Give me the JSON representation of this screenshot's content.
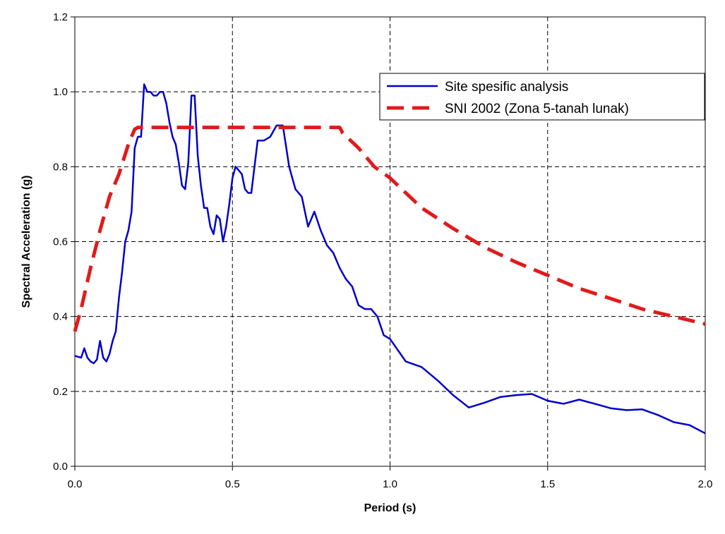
{
  "chart_data": {
    "type": "line",
    "title": "",
    "xlabel": "Period (s)",
    "ylabel": "Spectral Acceleration (g)",
    "xlim": [
      0,
      2.0
    ],
    "ylim": [
      0,
      1.2
    ],
    "x_ticks": [
      {
        "value": 0.0,
        "label": "0.0"
      },
      {
        "value": 0.5,
        "label": "0.5"
      },
      {
        "value": 1.0,
        "label": "1.0"
      },
      {
        "value": 1.5,
        "label": "1.5"
      },
      {
        "value": 2.0,
        "label": "2.0"
      }
    ],
    "y_ticks": [
      {
        "value": 0.0,
        "label": "0.0"
      },
      {
        "value": 0.2,
        "label": "0.2"
      },
      {
        "value": 0.4,
        "label": "0.4"
      },
      {
        "value": 0.6,
        "label": "0.6"
      },
      {
        "value": 0.8,
        "label": "0.8"
      },
      {
        "value": 1.0,
        "label": "1.0"
      },
      {
        "value": 1.2,
        "label": "1.2"
      }
    ],
    "grid": "dashed",
    "legend_position": "top-right",
    "series": [
      {
        "name": "Site spesific analysis",
        "color": "#0000cc",
        "style": "solid",
        "x": [
          0.0,
          0.02,
          0.03,
          0.04,
          0.05,
          0.06,
          0.07,
          0.08,
          0.09,
          0.1,
          0.11,
          0.12,
          0.13,
          0.14,
          0.15,
          0.16,
          0.17,
          0.18,
          0.19,
          0.2,
          0.21,
          0.22,
          0.23,
          0.24,
          0.25,
          0.26,
          0.27,
          0.28,
          0.29,
          0.3,
          0.31,
          0.32,
          0.33,
          0.34,
          0.35,
          0.36,
          0.37,
          0.38,
          0.39,
          0.4,
          0.41,
          0.42,
          0.43,
          0.44,
          0.45,
          0.46,
          0.47,
          0.48,
          0.49,
          0.5,
          0.51,
          0.52,
          0.53,
          0.54,
          0.55,
          0.56,
          0.57,
          0.58,
          0.59,
          0.6,
          0.62,
          0.64,
          0.66,
          0.68,
          0.7,
          0.72,
          0.74,
          0.76,
          0.78,
          0.8,
          0.82,
          0.84,
          0.86,
          0.88,
          0.9,
          0.92,
          0.94,
          0.96,
          0.98,
          1.0,
          1.05,
          1.1,
          1.15,
          1.2,
          1.25,
          1.3,
          1.35,
          1.4,
          1.45,
          1.5,
          1.55,
          1.6,
          1.65,
          1.7,
          1.75,
          1.8,
          1.85,
          1.9,
          1.95,
          2.0
        ],
        "y": [
          0.295,
          0.29,
          0.315,
          0.29,
          0.28,
          0.275,
          0.285,
          0.335,
          0.29,
          0.28,
          0.3,
          0.335,
          0.36,
          0.45,
          0.52,
          0.6,
          0.63,
          0.68,
          0.85,
          0.88,
          0.88,
          1.02,
          1.0,
          1.0,
          0.99,
          0.99,
          1.0,
          1.0,
          0.97,
          0.92,
          0.88,
          0.86,
          0.81,
          0.75,
          0.74,
          0.81,
          0.99,
          0.99,
          0.83,
          0.75,
          0.69,
          0.69,
          0.64,
          0.62,
          0.67,
          0.66,
          0.6,
          0.64,
          0.7,
          0.77,
          0.8,
          0.79,
          0.78,
          0.74,
          0.73,
          0.73,
          0.8,
          0.87,
          0.87,
          0.87,
          0.88,
          0.91,
          0.91,
          0.8,
          0.74,
          0.72,
          0.64,
          0.68,
          0.63,
          0.59,
          0.57,
          0.53,
          0.5,
          0.48,
          0.43,
          0.42,
          0.42,
          0.4,
          0.35,
          0.34,
          0.28,
          0.265,
          0.23,
          0.19,
          0.157,
          0.17,
          0.185,
          0.19,
          0.193,
          0.175,
          0.167,
          0.178,
          0.167,
          0.155,
          0.15,
          0.152,
          0.137,
          0.118,
          0.11,
          0.088
        ]
      },
      {
        "name": "SNI 2002 (Zona 5-tanah lunak)",
        "color": "#e01b1b",
        "style": "dashed",
        "x": [
          0.0,
          0.02,
          0.05,
          0.08,
          0.11,
          0.14,
          0.17,
          0.19,
          0.2,
          0.3,
          0.4,
          0.5,
          0.6,
          0.7,
          0.8,
          0.84,
          0.85,
          0.9,
          0.95,
          1.0,
          1.1,
          1.2,
          1.3,
          1.4,
          1.5,
          1.6,
          1.7,
          1.8,
          1.9,
          2.0
        ],
        "y": [
          0.36,
          0.42,
          0.53,
          0.63,
          0.72,
          0.78,
          0.86,
          0.9,
          0.905,
          0.905,
          0.905,
          0.905,
          0.905,
          0.905,
          0.905,
          0.905,
          0.89,
          0.85,
          0.8,
          0.77,
          0.69,
          0.635,
          0.585,
          0.545,
          0.51,
          0.475,
          0.448,
          0.42,
          0.4,
          0.38
        ]
      }
    ]
  }
}
